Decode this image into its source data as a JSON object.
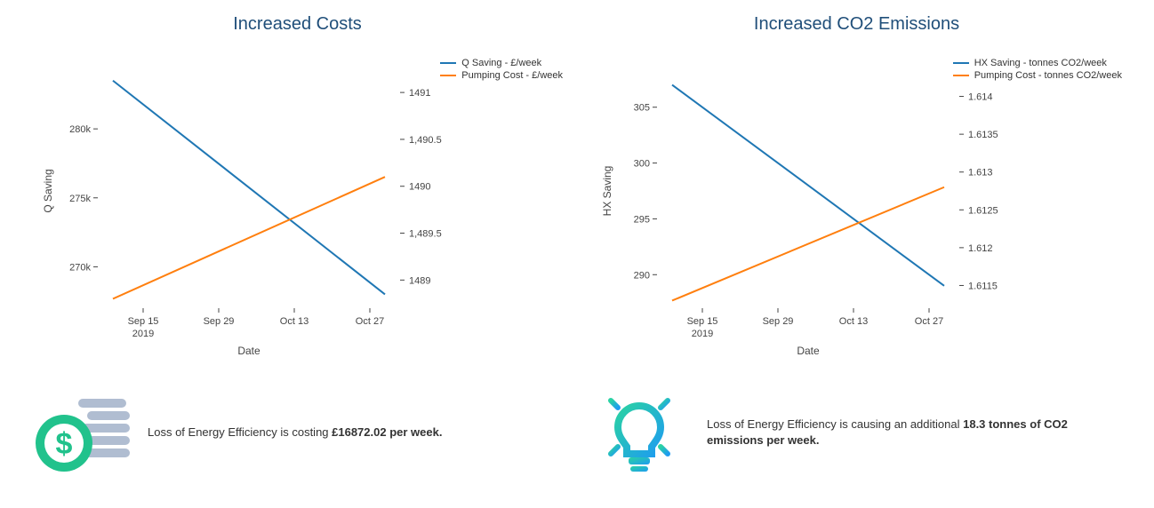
{
  "colors": {
    "title": "#1f4e79",
    "series_primary": "#1f77b4",
    "series_secondary": "#ff7f0e",
    "axis_text": "#444444",
    "footer_text": "#333333",
    "coin_fill": "#b0bdd1",
    "dollar_fill": "#21c28c",
    "bulb_blue": "#1e9cf0",
    "bulb_teal": "#2ad2a3"
  },
  "left_chart": {
    "type": "line-dual-axis",
    "title": "Increased Costs",
    "x_axis": {
      "label": "Date",
      "ticks": [
        "Sep 15",
        "Sep 29",
        "Oct 13",
        "Oct 27"
      ],
      "year_tick_index": 0,
      "year_label": "2019"
    },
    "y_left": {
      "label": "Q Saving",
      "ticks": [
        270,
        275,
        280
      ],
      "tick_labels": [
        "270k",
        "275k",
        "280k"
      ],
      "min": 267,
      "max": 284
    },
    "y_right": {
      "ticks": [
        1489,
        1489.5,
        1490,
        1490.5,
        1491
      ],
      "tick_labels": [
        "1489",
        "1,489.5",
        "1490",
        "1,490.5",
        "1491"
      ],
      "min": 1488.7,
      "max": 1491.2
    },
    "series": [
      {
        "name": "Q Saving - £/week",
        "axis": "left",
        "color": "#1f77b4",
        "points": [
          {
            "x_index": -0.4,
            "y": 283.5
          },
          {
            "x_index": 3.2,
            "y": 268.0
          }
        ]
      },
      {
        "name": "Pumping Cost - £/week",
        "axis": "right",
        "color": "#ff7f0e",
        "points": [
          {
            "x_index": -0.4,
            "y": 1488.8
          },
          {
            "x_index": 3.2,
            "y": 1490.1
          }
        ]
      }
    ],
    "legend": [
      "Q Saving - £/week",
      "Pumping Cost - £/week"
    ]
  },
  "right_chart": {
    "type": "line-dual-axis",
    "title": "Increased CO2 Emissions",
    "x_axis": {
      "label": "Date",
      "ticks": [
        "Sep 15",
        "Sep 29",
        "Oct 13",
        "Oct 27"
      ],
      "year_tick_index": 0,
      "year_label": "2019"
    },
    "y_left": {
      "label": "HX Saving",
      "ticks": [
        290,
        295,
        300,
        305
      ],
      "tick_labels": [
        "290",
        "295",
        "300",
        "305"
      ],
      "min": 287,
      "max": 308
    },
    "y_right": {
      "ticks": [
        1.6115,
        1.612,
        1.6125,
        1.613,
        1.6135,
        1.614
      ],
      "tick_labels": [
        "1.6115",
        "1.612",
        "1.6125",
        "1.613",
        "1.6135",
        "1.614"
      ],
      "min": 1.6112,
      "max": 1.6143
    },
    "series": [
      {
        "name": "HX Saving - tonnes CO2/week",
        "axis": "left",
        "color": "#1f77b4",
        "points": [
          {
            "x_index": -0.4,
            "y": 307.0
          },
          {
            "x_index": 3.2,
            "y": 289.0
          }
        ]
      },
      {
        "name": "Pumping Cost - tonnes CO2/week",
        "axis": "right",
        "color": "#ff7f0e",
        "points": [
          {
            "x_index": -0.4,
            "y": 1.6113
          },
          {
            "x_index": 3.2,
            "y": 1.6128
          }
        ]
      }
    ],
    "legend": [
      "HX Saving - tonnes CO2/week",
      "Pumping Cost - tonnes CO2/week"
    ]
  },
  "left_footer": {
    "text_prefix": "Loss of Energy Efficiency is costing ",
    "bold": "£16872.02 per week."
  },
  "right_footer": {
    "text_prefix": "Loss of Energy Efficiency is causing an additional ",
    "bold": "18.3 tonnes of CO2 emissions per week."
  }
}
